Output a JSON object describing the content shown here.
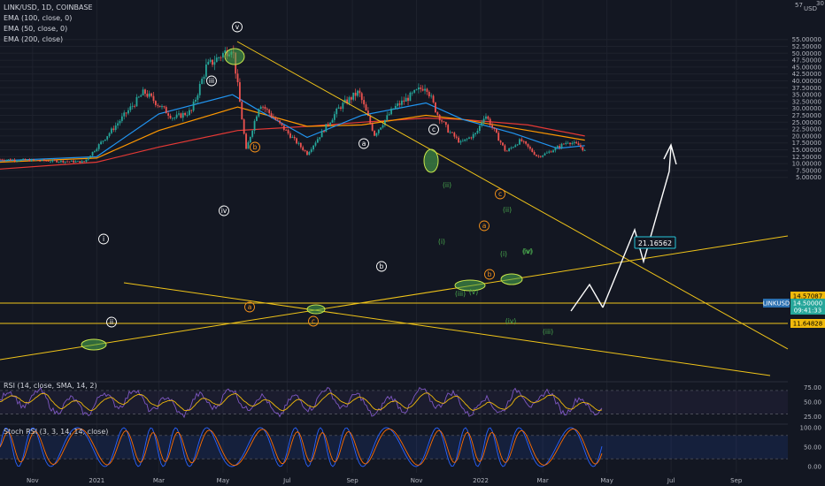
{
  "header": {
    "symbol": "LINK/USD, 1D, COINBASE",
    "indicators": [
      "EMA (100, close, 0)",
      "EMA (50, close, 0)",
      "EMA (200, close)"
    ]
  },
  "price_axis": {
    "currency": "USD",
    "top_partial_label": "57",
    "top_partial_label2": "30",
    "ticks": [
      55,
      52.5,
      50,
      47.5,
      45,
      42.5,
      40,
      37.5,
      35,
      32.5,
      30,
      27.5,
      25,
      22.5,
      20,
      17.5,
      15,
      12.5,
      10,
      7.5,
      5
    ],
    "tick_labels": [
      "55.00000",
      "52.50000",
      "50.00000",
      "47.50000",
      "45.00000",
      "42.50000",
      "40.00000",
      "37.50000",
      "35.00000",
      "32.50000",
      "30.00000",
      "27.50000",
      "25.00000",
      "22.50000",
      "20.00000",
      "17.50000",
      "15.00000",
      "12.50000",
      "10.00000",
      "7.50000",
      "5.00000"
    ],
    "badges": [
      {
        "text": "LINKUSD",
        "value": 14.5,
        "color": "#2a6fb0",
        "side": "left"
      },
      {
        "text": "14.57087",
        "value": 14.57,
        "color": "#f0b90b",
        "text_color": "#000000"
      },
      {
        "text": "14.50000",
        "value": 14.5,
        "color": "#26a69a"
      },
      {
        "text": "09:41:33",
        "value": 13.8,
        "color": "#26a69a"
      },
      {
        "text": "11.64828",
        "value": 11.65,
        "color": "#f0b90b",
        "text_color": "#000000"
      }
    ]
  },
  "time_axis": {
    "labels": [
      "Nov",
      "2021",
      "Mar",
      "May",
      "Jul",
      "Sep",
      "Nov",
      "2022",
      "Mar",
      "May",
      "Jul",
      "Sep"
    ]
  },
  "target_label": "21.16562",
  "waves": [
    {
      "text": "v",
      "color": "#ffffff"
    },
    {
      "text": "iii",
      "color": "#ffffff"
    },
    {
      "text": "b",
      "color": "#f7931a"
    },
    {
      "text": "iv",
      "color": "#ffffff"
    },
    {
      "text": "i",
      "color": "#ffffff"
    },
    {
      "text": "ii",
      "color": "#ffffff"
    },
    {
      "text": "a",
      "color": "#f7931a"
    },
    {
      "text": "a",
      "color": "#ffffff"
    },
    {
      "text": "b",
      "color": "#ffffff"
    },
    {
      "text": "c",
      "color": "#f7931a"
    },
    {
      "text": "c",
      "color": "#ffffff"
    },
    {
      "text": "(ii)",
      "color": "#4caf50"
    },
    {
      "text": "(iv)",
      "color": "#4caf50"
    },
    {
      "text": "(i)",
      "color": "#4caf50"
    },
    {
      "text": "a",
      "color": "#f7931a"
    },
    {
      "text": "(iii)",
      "color": "#4caf50"
    },
    {
      "text": "(v)",
      "color": "#4caf50"
    },
    {
      "text": "b",
      "color": "#f7931a"
    },
    {
      "text": "c",
      "color": "#f7931a"
    },
    {
      "text": "(ii)",
      "color": "#4caf50"
    },
    {
      "text": "(i)",
      "color": "#4caf50"
    },
    {
      "text": "(iv)",
      "color": "#4caf50"
    },
    {
      "text": "(iii)",
      "color": "#4caf50"
    },
    {
      "text": "(v)",
      "color": "#4caf50"
    }
  ],
  "rsi_pane": {
    "label": "RSI (14, close, SMA, 14, 2)",
    "ticks": [
      "75.00",
      "50.00",
      "25.00"
    ],
    "colors": {
      "rsi": "#7e57c2",
      "ma": "#f0b90b",
      "band": "#7e57c2"
    }
  },
  "stoch_pane": {
    "label": "Stoch RSI (3, 3, 14, 14, close)",
    "ticks": [
      "100.00",
      "50.00",
      "0.00"
    ],
    "colors": {
      "k": "#2962ff",
      "d": "#ff6d00",
      "band": "#2962ff"
    }
  },
  "chart_data": {
    "type": "candlestick",
    "symbol": "LINK/USD",
    "interval": "1D",
    "exchange": "COINBASE",
    "x_range": [
      "2020-10",
      "2022-09"
    ],
    "y_range": [
      5,
      57
    ],
    "key_points": [
      {
        "date": "2020-10-01",
        "price": 11.5
      },
      {
        "date": "2020-12-20",
        "price": 10.6
      },
      {
        "date": "2021-01-15",
        "price": 22
      },
      {
        "date": "2021-02-15",
        "price": 36
      },
      {
        "date": "2021-03-15",
        "price": 26.5
      },
      {
        "date": "2021-04-01",
        "price": 29
      },
      {
        "date": "2021-04-15",
        "price": 45
      },
      {
        "date": "2021-05-10",
        "price": 52.5
      },
      {
        "date": "2021-05-23",
        "price": 14.8
      },
      {
        "date": "2021-06-05",
        "price": 32
      },
      {
        "date": "2021-07-20",
        "price": 13.6
      },
      {
        "date": "2021-08-20",
        "price": 30.5
      },
      {
        "date": "2021-09-07",
        "price": 36
      },
      {
        "date": "2021-09-22",
        "price": 20.5
      },
      {
        "date": "2021-10-10",
        "price": 30
      },
      {
        "date": "2021-11-10",
        "price": 38.5
      },
      {
        "date": "2021-11-20",
        "price": 28.5
      },
      {
        "date": "2021-12-01",
        "price": 22
      },
      {
        "date": "2021-12-13",
        "price": 17.5
      },
      {
        "date": "2021-12-28",
        "price": 21
      },
      {
        "date": "2022-01-05",
        "price": 28
      },
      {
        "date": "2022-01-25",
        "price": 14.2
      },
      {
        "date": "2022-02-08",
        "price": 18.5
      },
      {
        "date": "2022-02-24",
        "price": 12.5
      },
      {
        "date": "2022-03-05",
        "price": 13.8
      },
      {
        "date": "2022-03-25",
        "price": 18
      },
      {
        "date": "2022-04-05",
        "price": 16.5
      },
      {
        "date": "2022-04-10",
        "price": 14.5
      }
    ],
    "ema_50": [
      [
        "2020-10-01",
        11
      ],
      [
        "2021-01-01",
        12.5
      ],
      [
        "2021-03-01",
        28
      ],
      [
        "2021-05-10",
        35
      ],
      [
        "2021-06-01",
        30
      ],
      [
        "2021-07-20",
        19.5
      ],
      [
        "2021-09-10",
        27.5
      ],
      [
        "2021-11-10",
        32
      ],
      [
        "2021-12-15",
        26
      ],
      [
        "2022-02-01",
        21
      ],
      [
        "2022-03-15",
        15.5
      ],
      [
        "2022-04-10",
        16.5
      ]
    ],
    "ema_100": [
      [
        "2020-10-01",
        10.5
      ],
      [
        "2021-01-01",
        12
      ],
      [
        "2021-03-01",
        22
      ],
      [
        "2021-05-15",
        30.5
      ],
      [
        "2021-07-20",
        23.5
      ],
      [
        "2021-09-10",
        24
      ],
      [
        "2021-11-10",
        27.5
      ],
      [
        "2021-12-15",
        26
      ],
      [
        "2022-02-15",
        22
      ],
      [
        "2022-04-10",
        18.5
      ]
    ],
    "ema_200": [
      [
        "2020-10-01",
        8
      ],
      [
        "2021-01-01",
        10.5
      ],
      [
        "2021-03-01",
        16
      ],
      [
        "2021-05-15",
        22
      ],
      [
        "2021-07-20",
        23.5
      ],
      [
        "2021-09-10",
        25
      ],
      [
        "2021-11-10",
        26.5
      ],
      [
        "2021-12-15",
        26
      ],
      [
        "2022-02-15",
        24
      ],
      [
        "2022-04-10",
        20
      ]
    ],
    "projection": [
      [
        "2022-04-10",
        14.5
      ],
      [
        "2022-04-28",
        24.5
      ],
      [
        "2022-05-10",
        21.2
      ],
      [
        "2022-05-25",
        32.5
      ],
      [
        "2022-06-01",
        37.5
      ]
    ],
    "levels": [
      14.57,
      11.65
    ],
    "rsi_range": [
      20,
      85
    ],
    "stoch_range": [
      0,
      100
    ]
  }
}
